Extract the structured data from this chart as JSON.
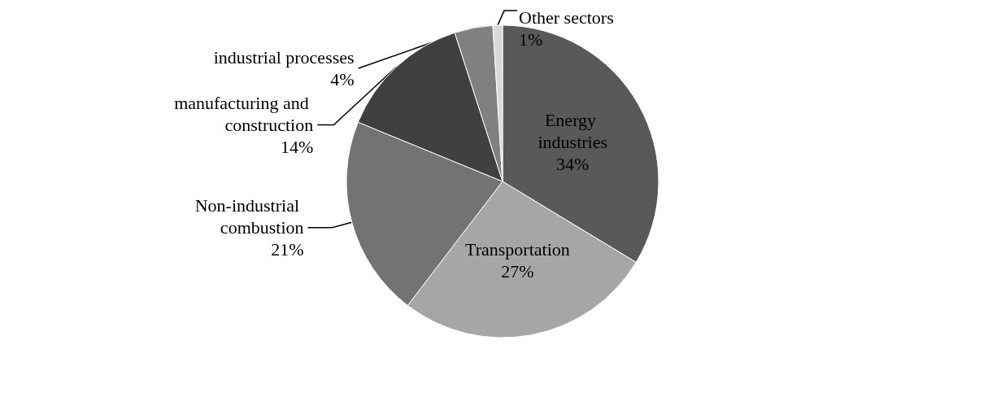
{
  "chart_data": {
    "type": "pie",
    "categories": [
      "Energy industries",
      "Transportation",
      "Non-industrial combustion",
      "manufacturing and construction",
      "industrial processes",
      "Other sectors"
    ],
    "values": [
      34,
      27,
      21,
      14,
      4,
      1
    ],
    "colors": [
      "#595959",
      "#a6a6a6",
      "#737373",
      "#404040",
      "#808080",
      "#d9d9d9"
    ],
    "value_labels": [
      "34%",
      "27%",
      "21%",
      "14%",
      "4%",
      "1%"
    ],
    "legend": false
  }
}
